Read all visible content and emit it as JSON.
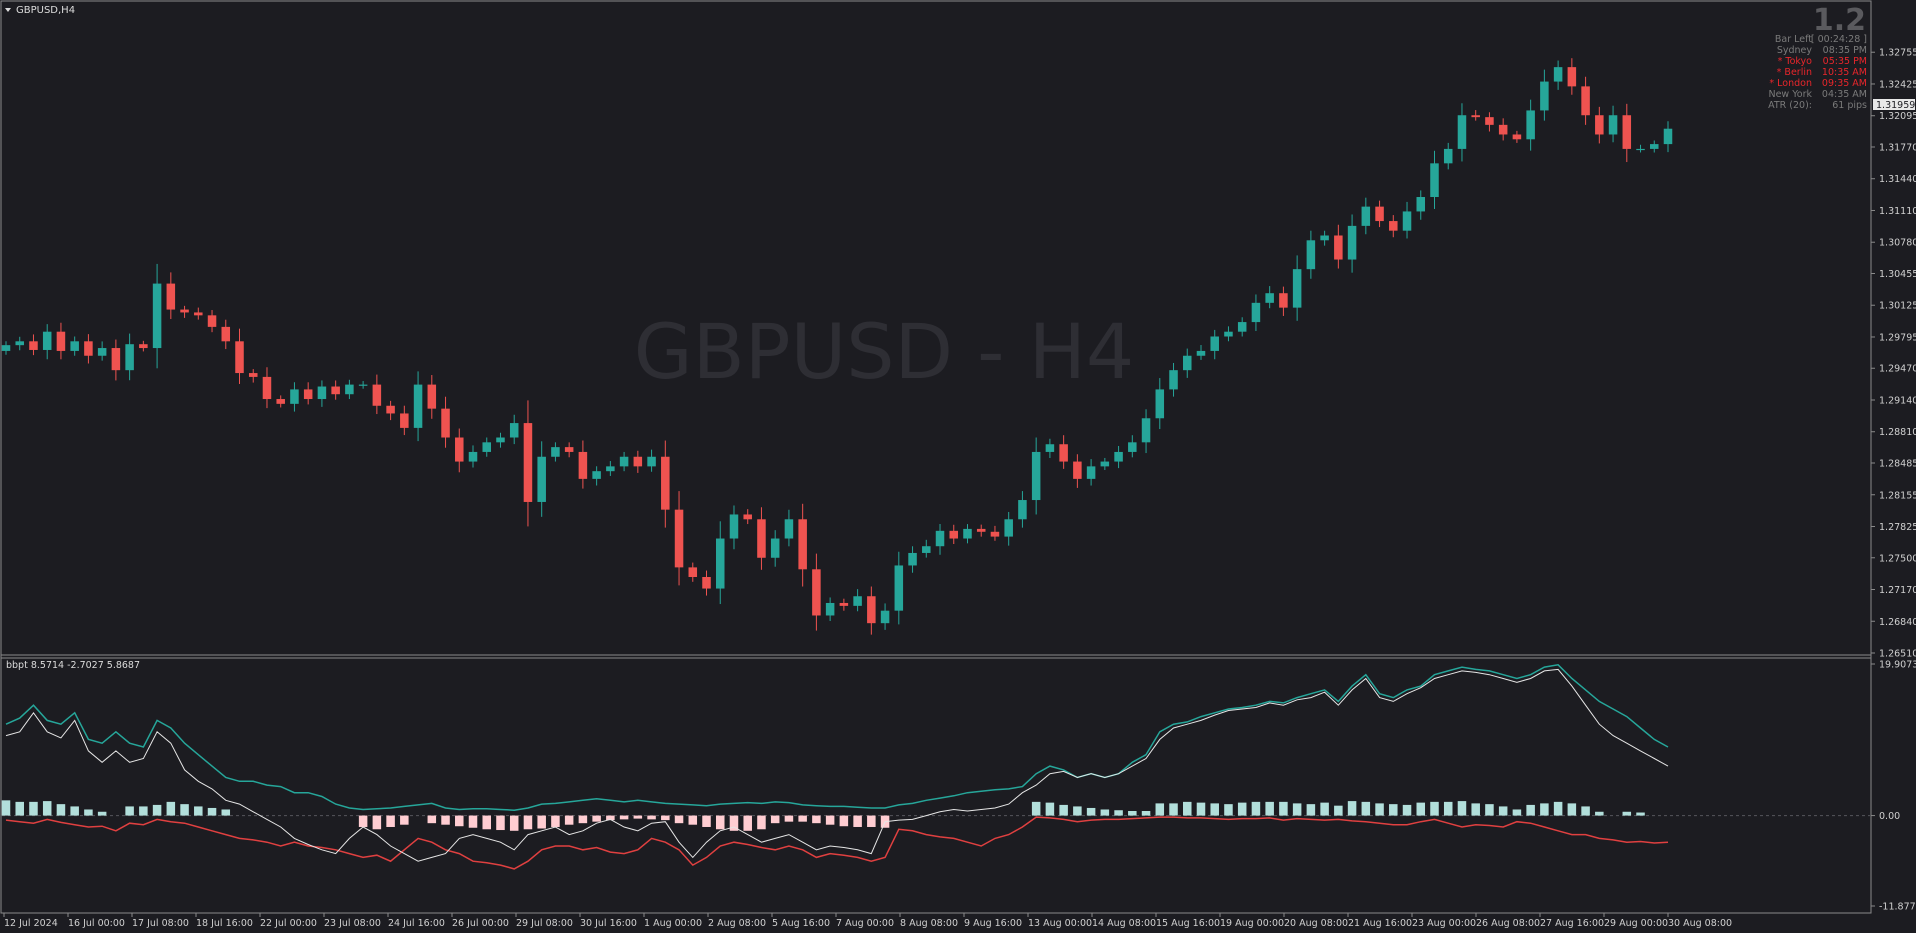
{
  "window": {
    "symbol_label": "GBPUSD,H4",
    "watermark": "GBPUSD - H4",
    "spread": "1.2"
  },
  "info_panel": [
    {
      "label": "Bar Left",
      "value": "[ 00:24:28 ]",
      "color": "#7a7a7a"
    },
    {
      "label": "Sydney",
      "value": "08:35 PM",
      "color": "#7a7a7a"
    },
    {
      "label": "* Tokyo",
      "value": "05:35 PM",
      "color": "#e8262b"
    },
    {
      "label": "* Berlin",
      "value": "10:35 AM",
      "color": "#e8262b"
    },
    {
      "label": "* London",
      "value": "09:35 AM",
      "color": "#e8262b"
    },
    {
      "label": "New York",
      "value": "04:35 AM",
      "color": "#7a7a7a"
    },
    {
      "label": "ATR (20):",
      "value": "61 pips",
      "color": "#7a7a7a"
    }
  ],
  "colors": {
    "background": "#1c1c21",
    "bull": "#26a69a",
    "bear": "#ef5350",
    "bbpt_upper": "#26a69a",
    "bbpt_lower": "#e04040",
    "bbpt_mid": "#e6e6e6",
    "hist_pos": "#b2dfdb",
    "hist_neg": "#ffcdd2",
    "grid_text": "#d0d0d0"
  },
  "chart_data": [
    {
      "type": "candlestick",
      "symbol": "GBPUSD",
      "timeframe": "H4",
      "current_price": "1.31959",
      "y_ticks": [
        "1.32755",
        "1.32425",
        "1.32095",
        "1.31770",
        "1.31440",
        "1.31110",
        "1.30780",
        "1.30455",
        "1.30125",
        "1.29795",
        "1.29470",
        "1.29140",
        "1.28810",
        "1.28485",
        "1.28155",
        "1.27825",
        "1.27500",
        "1.27170",
        "1.26840",
        "1.26510"
      ],
      "ylim": [
        1.2651,
        1.3309
      ],
      "x_ticks": [
        "12 Jul 2024",
        "16 Jul 00:00",
        "17 Jul 08:00",
        "18 Jul 16:00",
        "22 Jul 00:00",
        "23 Jul 08:00",
        "24 Jul 16:00",
        "26 Jul 00:00",
        "29 Jul 08:00",
        "30 Jul 16:00",
        "1 Aug 00:00",
        "2 Aug 08:00",
        "5 Aug 16:00",
        "7 Aug 00:00",
        "8 Aug 08:00",
        "9 Aug 16:00",
        "13 Aug 00:00",
        "14 Aug 08:00",
        "15 Aug 16:00",
        "19 Aug 00:00",
        "20 Aug 08:00",
        "21 Aug 16:00",
        "23 Aug 00:00",
        "26 Aug 08:00",
        "27 Aug 16:00",
        "29 Aug 00:00",
        "30 Aug 08:00"
      ],
      "close_path": [
        1.2971,
        1.2975,
        1.2966,
        1.2985,
        1.2965,
        1.2975,
        1.296,
        1.2968,
        1.2945,
        1.2972,
        1.2968,
        1.3035,
        1.3008,
        1.3005,
        1.3002,
        1.299,
        1.2975,
        1.2942,
        1.2938,
        1.2915,
        1.291,
        1.2925,
        1.2915,
        1.2928,
        1.292,
        1.293,
        1.293,
        1.2908,
        1.29,
        1.2885,
        1.293,
        1.2905,
        1.2875,
        1.285,
        1.286,
        1.287,
        1.2875,
        1.289,
        1.2808,
        1.2855,
        1.2865,
        1.286,
        1.2832,
        1.284,
        1.2845,
        1.2855,
        1.2845,
        1.2855,
        1.28,
        1.274,
        1.273,
        1.2718,
        1.277,
        1.2795,
        1.279,
        1.275,
        1.277,
        1.279,
        1.2738,
        1.269,
        1.2703,
        1.27,
        1.271,
        1.2682,
        1.2695,
        1.2742,
        1.2755,
        1.2762,
        1.2778,
        1.277,
        1.278,
        1.2777,
        1.2772,
        1.279,
        1.281,
        1.286,
        1.2868,
        1.285,
        1.2832,
        1.2845,
        1.285,
        1.286,
        1.287,
        1.2895,
        1.2925,
        1.2945,
        1.296,
        1.2965,
        1.298,
        1.2985,
        1.2995,
        1.3015,
        1.3025,
        1.301,
        1.305,
        1.308,
        1.3085,
        1.306,
        1.3095,
        1.3115,
        1.31,
        1.309,
        1.311,
        1.3125,
        1.316,
        1.3175,
        1.321,
        1.3208,
        1.32,
        1.319,
        1.3185,
        1.3215,
        1.3245,
        1.326,
        1.324,
        1.321,
        1.319,
        1.321,
        1.3175,
        1.3175,
        1.318,
        1.3196
      ]
    },
    {
      "type": "line",
      "indicator": "bbpt",
      "header": "bbpt 8.5714 -2.7027 5.8687",
      "y_ticks": [
        "19.9073",
        "0.00",
        "-11.8778"
      ],
      "ylim": [
        -11.8778,
        19.9073
      ],
      "series": [
        {
          "values": [
            12.0,
            12.8,
            14.5,
            12.5,
            12.0,
            13.5,
            10.0,
            9.5,
            11.0,
            9.5,
            9.0,
            12.5,
            11.5,
            9.5,
            8.0,
            6.5,
            5.0,
            4.5,
            4.5,
            4.0,
            3.8,
            3.0,
            3.0,
            2.5,
            1.5,
            1.0,
            0.8,
            0.9,
            1.0,
            1.2,
            1.4,
            1.6,
            1.0,
            0.8,
            0.9,
            0.9,
            0.8,
            0.7,
            1.0,
            1.5,
            1.6,
            1.8,
            2.0,
            2.2,
            2.0,
            1.8,
            2.0,
            1.8,
            1.6,
            1.5,
            1.4,
            1.3,
            1.5,
            1.6,
            1.7,
            1.6,
            1.8,
            1.7,
            1.4,
            1.3,
            1.2,
            1.2,
            1.1,
            1.0,
            1.0,
            1.4,
            1.6,
            2.0,
            2.3,
            2.6,
            3.0,
            3.2,
            3.4,
            3.5,
            3.8,
            5.5,
            6.5,
            6.0,
            5.0,
            5.5,
            5.0,
            5.5,
            7.0,
            8.0,
            11.0,
            12.0,
            12.3,
            13.0,
            13.5,
            14.0,
            14.2,
            14.5,
            15.0,
            14.8,
            15.5,
            16.0,
            16.5,
            15.0,
            17.0,
            18.5,
            16.0,
            15.5,
            16.5,
            17.0,
            18.5,
            19.0,
            19.5,
            19.2,
            19.0,
            18.5,
            18.0,
            18.5,
            19.5,
            19.8,
            18.0,
            16.5,
            15.0,
            14.0,
            13.0,
            11.5,
            10.0,
            9.0
          ]
        },
        {
          "values": [
            -0.6,
            -0.8,
            -1.0,
            -0.5,
            -0.9,
            -1.2,
            -1.5,
            -1.4,
            -2.0,
            -1.0,
            -1.2,
            -0.5,
            -0.8,
            -1.0,
            -1.5,
            -2.0,
            -2.5,
            -3.0,
            -3.2,
            -3.5,
            -4.0,
            -3.5,
            -4.0,
            -4.2,
            -4.5,
            -5.0,
            -5.5,
            -5.2,
            -6.0,
            -4.5,
            -3.0,
            -3.5,
            -4.5,
            -5.0,
            -6.0,
            -6.2,
            -6.5,
            -7.0,
            -6.0,
            -4.5,
            -4.0,
            -4.0,
            -4.5,
            -4.2,
            -4.8,
            -5.0,
            -4.5,
            -3.0,
            -3.5,
            -4.5,
            -6.5,
            -5.5,
            -4.0,
            -3.5,
            -3.8,
            -4.2,
            -4.5,
            -4.0,
            -4.5,
            -5.5,
            -5.0,
            -5.2,
            -5.5,
            -6.0,
            -5.5,
            -1.8,
            -2.0,
            -2.5,
            -2.8,
            -3.0,
            -3.5,
            -4.0,
            -3.0,
            -2.5,
            -1.5,
            -0.2,
            -0.3,
            -0.5,
            -0.8,
            -0.6,
            -0.5,
            -0.5,
            -0.4,
            -0.3,
            -0.2,
            -0.2,
            -0.3,
            -0.3,
            -0.4,
            -0.5,
            -0.4,
            -0.4,
            -0.3,
            -0.6,
            -0.4,
            -0.5,
            -0.6,
            -0.5,
            -0.7,
            -0.8,
            -1.0,
            -1.2,
            -1.2,
            -0.8,
            -0.5,
            -1.0,
            -1.5,
            -1.2,
            -1.3,
            -1.5,
            -0.8,
            -1.0,
            -1.5,
            -2.0,
            -2.5,
            -2.5,
            -3.0,
            -3.2,
            -3.5,
            -3.4,
            -3.6,
            -3.5
          ]
        },
        {
          "values": [
            10.5,
            11.0,
            13.5,
            11.0,
            10.2,
            12.5,
            8.5,
            7.0,
            8.5,
            7.0,
            7.5,
            11.0,
            9.5,
            6.0,
            4.5,
            3.5,
            2.0,
            1.5,
            0.5,
            -0.5,
            -1.5,
            -3.0,
            -3.8,
            -4.5,
            -5.0,
            -3.0,
            -1.5,
            -2.5,
            -4.0,
            -5.0,
            -6.0,
            -5.5,
            -5.0,
            -3.0,
            -2.5,
            -3.0,
            -3.5,
            -4.5,
            -2.5,
            -2.0,
            -1.5,
            -2.5,
            -2.0,
            -1.0,
            -0.5,
            -1.5,
            -2.0,
            -1.0,
            -0.8,
            -3.5,
            -5.5,
            -3.5,
            -2.0,
            -1.5,
            -2.5,
            -3.5,
            -3.0,
            -2.5,
            -3.5,
            -4.5,
            -4.0,
            -4.2,
            -4.5,
            -5.0,
            -0.8,
            -0.6,
            -0.5,
            0.0,
            0.5,
            0.8,
            0.6,
            0.8,
            1.0,
            1.5,
            3.0,
            4.0,
            5.5,
            5.8,
            5.0,
            5.5,
            5.0,
            5.5,
            6.5,
            7.5,
            10.0,
            11.5,
            12.0,
            12.5,
            13.2,
            13.8,
            14.0,
            14.2,
            14.8,
            14.5,
            15.2,
            15.5,
            16.2,
            14.5,
            16.5,
            18.0,
            15.5,
            15.0,
            16.0,
            16.8,
            18.0,
            18.5,
            19.0,
            18.8,
            18.5,
            18.0,
            17.5,
            18.0,
            19.0,
            19.2,
            17.0,
            14.5,
            12.0,
            10.5,
            9.5,
            8.5,
            7.5,
            6.5
          ]
        }
      ],
      "histogram": [
        2.0,
        1.8,
        1.8,
        1.9,
        1.5,
        1.2,
        0.8,
        0.5,
        0,
        1.2,
        1.2,
        1.4,
        1.8,
        1.5,
        1.2,
        1.0,
        0.8,
        0,
        0,
        0,
        0,
        0,
        0,
        0,
        0,
        0,
        -1.5,
        -1.8,
        -1.5,
        -1.2,
        0,
        -1.0,
        -1.2,
        -1.4,
        -1.6,
        -1.8,
        -1.9,
        -2.0,
        -1.8,
        -1.7,
        -1.5,
        -1.2,
        -1.0,
        -0.8,
        -0.6,
        -0.5,
        -0.4,
        -0.5,
        -0.6,
        -1.0,
        -1.2,
        -1.5,
        -1.8,
        -2.0,
        -2.0,
        -1.8,
        -1.0,
        -0.8,
        -0.8,
        -1.0,
        -1.2,
        -1.4,
        -1.5,
        -1.5,
        -1.6,
        0,
        0,
        0,
        0,
        0,
        0,
        0,
        0,
        0,
        0,
        1.8,
        1.7,
        1.4,
        1.2,
        1.0,
        0.8,
        0.7,
        0.6,
        0.6,
        1.6,
        1.6,
        1.8,
        1.7,
        1.6,
        1.5,
        1.7,
        1.8,
        1.8,
        1.8,
        1.6,
        1.5,
        1.7,
        1.3,
        1.9,
        1.8,
        1.6,
        1.5,
        1.4,
        1.7,
        1.8,
        1.8,
        1.9,
        1.6,
        1.5,
        1.2,
        0.8,
        1.4,
        1.6,
        1.8,
        1.6,
        1.2,
        0.5,
        0,
        0.5,
        0.4,
        0,
        0
      ]
    }
  ]
}
